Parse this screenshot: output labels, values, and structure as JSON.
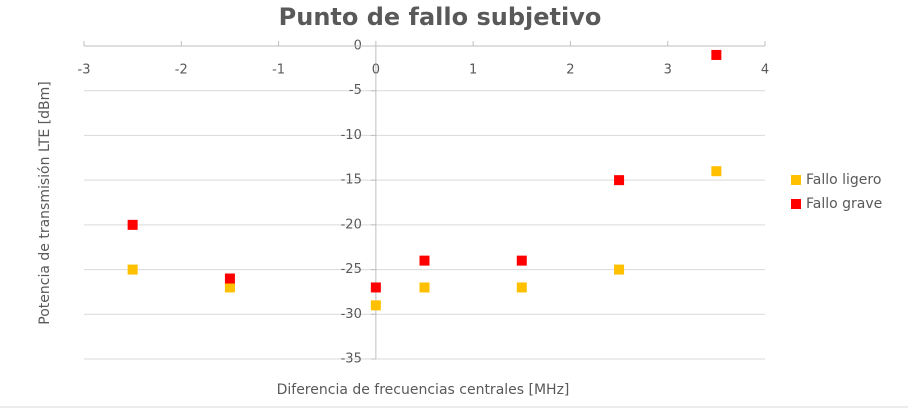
{
  "chart_data": {
    "type": "scatter",
    "title": "Punto de fallo subjetivo",
    "x_label": "Diferencia de frecuencias centrales [MHz]",
    "y_label": "Potencia de transmisión LTE [dBm]",
    "x": [
      -2.5,
      -1.5,
      0,
      0.5,
      1.5,
      2.5,
      3.5
    ],
    "series": [
      {
        "name": "Fallo ligero",
        "color": "#ffc000",
        "values": [
          -25,
          -27,
          -29,
          -27,
          -27,
          -25,
          -14
        ]
      },
      {
        "name": "Fallo grave",
        "color": "#ff0000",
        "values": [
          -20,
          -26,
          -27,
          -24,
          -24,
          -15,
          -1
        ]
      }
    ],
    "xlim": [
      -3,
      4
    ],
    "xticks": [
      -3,
      -2,
      -1,
      0,
      1,
      2,
      3,
      4
    ],
    "ylim": [
      -35,
      0
    ],
    "yticks": [
      -35,
      -30,
      -25,
      -20,
      -15,
      -10,
      -5,
      0
    ],
    "grid": true,
    "legend": "right"
  }
}
